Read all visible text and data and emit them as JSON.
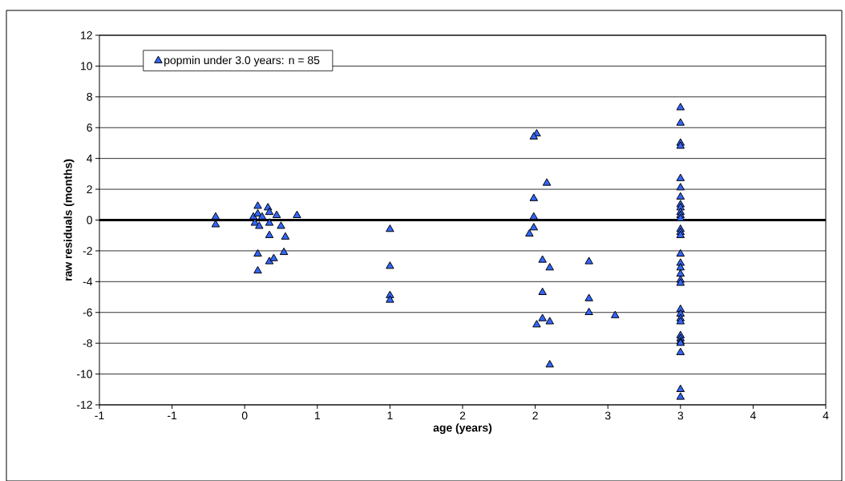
{
  "chart_data": {
    "type": "scatter",
    "xlabel": "age (years)",
    "ylabel": "raw residuals (months)",
    "series": [
      {
        "name": "popmin under 3.0 years:  n = 85",
        "color": "#3366ff",
        "x": [
          -0.2,
          -0.2,
          0.06,
          0.07,
          0.09,
          0.09,
          0.1,
          0.09,
          0.09,
          0.12,
          0.16,
          0.17,
          0.17,
          0.17,
          0.17,
          0.2,
          0.22,
          0.25,
          0.28,
          0.27,
          0.36,
          1.0,
          1.0,
          1.0,
          1.0,
          2.01,
          1.99,
          2.08,
          1.99,
          1.99,
          1.99,
          1.96,
          2.05,
          2.1,
          2.05,
          2.05,
          2.1,
          2.01,
          2.1,
          2.37,
          2.37,
          2.37,
          2.55,
          3.0,
          3.0,
          3.0,
          3.0,
          3.0,
          3.0,
          3.0,
          3.0,
          3.0,
          3.0,
          3.0,
          3.0,
          3.0,
          3.0,
          3.0,
          3.0,
          3.0,
          3.0,
          3.0,
          3.0,
          3.0,
          3.0,
          3.0,
          3.0,
          3.0,
          3.0,
          3.0,
          3.0,
          3.0,
          3.0,
          3.0,
          3.0
        ],
        "values": [
          0.2,
          -0.3,
          0.2,
          -0.2,
          0.9,
          0.4,
          -0.4,
          -2.2,
          -3.3,
          0.2,
          0.8,
          0.5,
          -0.2,
          -1.0,
          -2.7,
          -2.5,
          0.3,
          -0.4,
          -1.1,
          -2.1,
          0.3,
          -0.6,
          -3.0,
          -4.9,
          -5.2,
          5.6,
          5.4,
          2.4,
          1.4,
          0.2,
          -0.5,
          -0.9,
          -2.6,
          -3.1,
          -4.7,
          -6.4,
          -6.6,
          -6.8,
          -9.4,
          -2.7,
          -5.1,
          -6.0,
          -6.2,
          7.3,
          6.3,
          5.0,
          4.8,
          2.7,
          2.1,
          1.5,
          1.0,
          0.8,
          0.5,
          0.3,
          0.1,
          -0.6,
          -0.8,
          -1.0,
          -2.2,
          -2.8,
          -3.1,
          -3.5,
          -3.9,
          -4.1,
          -5.8,
          -6.1,
          -6.4,
          -6.6,
          -7.5,
          -7.7,
          -7.9,
          -8.0,
          -8.6,
          -11.0,
          -11.5
        ]
      }
    ],
    "xlim": [
      -1,
      4
    ],
    "xticks": [
      {
        "value": -1,
        "label": "-1"
      },
      {
        "value": -0.5,
        "label": "-1"
      },
      {
        "value": 0,
        "label": "0"
      },
      {
        "value": 0.5,
        "label": "1"
      },
      {
        "value": 1,
        "label": "1"
      },
      {
        "value": 1.5,
        "label": "2"
      },
      {
        "value": 2,
        "label": "2"
      },
      {
        "value": 2.5,
        "label": "3"
      },
      {
        "value": 3,
        "label": "3"
      },
      {
        "value": 3.5,
        "label": "4"
      },
      {
        "value": 4,
        "label": "4"
      }
    ],
    "ylim": [
      -12,
      12
    ],
    "yticks": [
      -12,
      -10,
      -8,
      -6,
      -4,
      -2,
      0,
      2,
      4,
      6,
      8,
      10,
      12
    ],
    "ref_lines": [
      {
        "axis": "y",
        "value": 0
      }
    ],
    "grid": "y",
    "legend": "top left",
    "marker": "triangle"
  }
}
